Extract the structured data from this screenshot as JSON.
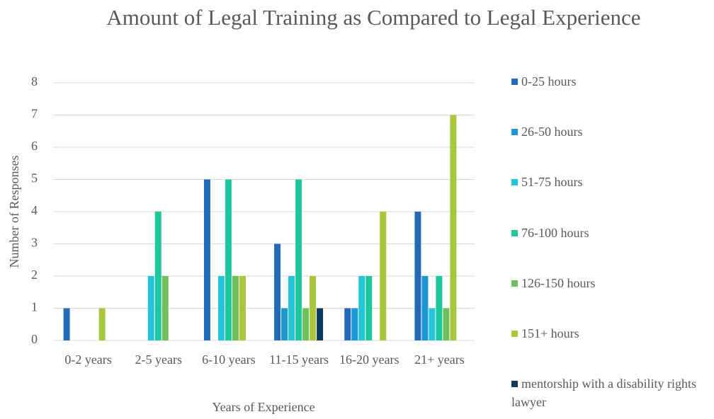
{
  "chart_data": {
    "type": "bar",
    "title": "Amount of Legal Training as Compared to Legal Experience",
    "x_label": "Years of Experience",
    "y_label": "Number of Responses",
    "categories": [
      "0-2 years",
      "2-5 years",
      "6-10 years",
      "11-15 years",
      "16-20 years",
      "21+ years"
    ],
    "series": [
      {
        "name": "0-25 hours",
        "color": "#2569b9",
        "values": [
          1,
          0,
          5,
          3,
          1,
          4
        ]
      },
      {
        "name": "26-50 hours",
        "color": "#1b98d4",
        "values": [
          0,
          0,
          0,
          1,
          1,
          2
        ]
      },
      {
        "name": "51-75 hours",
        "color": "#25c4da",
        "values": [
          0,
          2,
          2,
          2,
          2,
          1
        ]
      },
      {
        "name": "76-100 hours",
        "color": "#1fc79f",
        "values": [
          0,
          4,
          5,
          5,
          2,
          2
        ]
      },
      {
        "name": "126-150 hours",
        "color": "#6fbf5d",
        "values": [
          0,
          2,
          2,
          1,
          0,
          1
        ]
      },
      {
        "name": "151+ hours",
        "color": "#a9c63c",
        "values": [
          1,
          0,
          2,
          2,
          4,
          7
        ]
      },
      {
        "name": "mentorship with a disability rights lawyer",
        "color": "#0e3a5e",
        "values": [
          0,
          0,
          0,
          1,
          0,
          0
        ]
      }
    ],
    "ylim": [
      0,
      8
    ],
    "yticks": [
      0,
      1,
      2,
      3,
      4,
      5,
      6,
      7,
      8
    ],
    "grid": true,
    "legend": "right"
  }
}
